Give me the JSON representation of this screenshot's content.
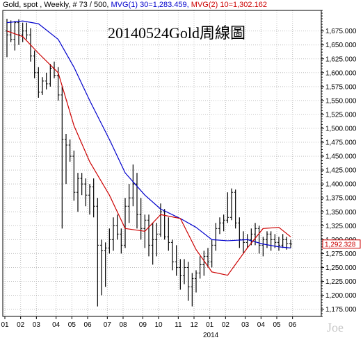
{
  "header": {
    "instrument": "Gold, spot , Weekly, # 73 / 500,",
    "mvg1": "MVG(1) 30=1,283.459,",
    "mvg2": "MVG(2) 10=1,302.162"
  },
  "colors": {
    "mvg1": "#0000cc",
    "mvg2": "#cc0000",
    "bars": "#000000",
    "grid": "#c0c0c0",
    "axis": "#000000"
  },
  "chart_data": {
    "type": "ohlc",
    "title": "20140524Gold周線圖",
    "watermark": "Joe",
    "year_label": "2014",
    "last_price_label": "1,292.328",
    "y_ticks": [
      "1,175.000",
      "1,200.000",
      "1,225.000",
      "1,250.000",
      "1,275.000",
      "1,300.000",
      "1,325.000",
      "1,350.000",
      "1,375.000",
      "1,400.000",
      "1,425.000",
      "1,450.000",
      "1,475.000",
      "1,500.000",
      "1,525.000",
      "1,550.000",
      "1,575.000",
      "1,600.000",
      "1,625.000",
      "1,650.000",
      "1,675.000"
    ],
    "y_tick_values": [
      1175,
      1200,
      1225,
      1250,
      1275,
      1300,
      1325,
      1350,
      1375,
      1400,
      1425,
      1450,
      1475,
      1500,
      1525,
      1550,
      1575,
      1600,
      1625,
      1650,
      1675
    ],
    "ylim": [
      1162,
      1712
    ],
    "x_tick_labels": [
      "01",
      "02",
      "03",
      "04",
      "05",
      "06",
      "07",
      "08",
      "09",
      "10",
      "11",
      "12",
      "01",
      "02",
      "03",
      "04",
      "05",
      "06"
    ],
    "x_tick_index": [
      0,
      4,
      8,
      13,
      17,
      21,
      26,
      30,
      35,
      39,
      44,
      48,
      52,
      56,
      61,
      65,
      69,
      73
    ],
    "n_bars": 73,
    "ohlc": [
      [
        1675,
        1697,
        1628,
        1668
      ],
      [
        1668,
        1694,
        1655,
        1660
      ],
      [
        1660,
        1693,
        1640,
        1690
      ],
      [
        1690,
        1696,
        1650,
        1668
      ],
      [
        1668,
        1690,
        1655,
        1675
      ],
      [
        1675,
        1690,
        1660,
        1668
      ],
      [
        1668,
        1680,
        1620,
        1630
      ],
      [
        1630,
        1640,
        1590,
        1600
      ],
      [
        1600,
        1610,
        1555,
        1565
      ],
      [
        1565,
        1592,
        1560,
        1585
      ],
      [
        1585,
        1600,
        1570,
        1580
      ],
      [
        1580,
        1616,
        1575,
        1608
      ],
      [
        1608,
        1620,
        1590,
        1595
      ],
      [
        1595,
        1610,
        1550,
        1560
      ],
      [
        1560,
        1575,
        1320,
        1480
      ],
      [
        1480,
        1490,
        1400,
        1470
      ],
      [
        1470,
        1480,
        1440,
        1450
      ],
      [
        1450,
        1460,
        1370,
        1385
      ],
      [
        1385,
        1420,
        1350,
        1410
      ],
      [
        1410,
        1420,
        1380,
        1400
      ],
      [
        1400,
        1410,
        1360,
        1380
      ],
      [
        1380,
        1400,
        1345,
        1395
      ],
      [
        1395,
        1410,
        1340,
        1360
      ],
      [
        1360,
        1375,
        1180,
        1290
      ],
      [
        1290,
        1300,
        1200,
        1280
      ],
      [
        1280,
        1295,
        1215,
        1285
      ],
      [
        1285,
        1320,
        1275,
        1300
      ],
      [
        1300,
        1340,
        1280,
        1325
      ],
      [
        1325,
        1345,
        1300,
        1310
      ],
      [
        1310,
        1320,
        1275,
        1290
      ],
      [
        1290,
        1375,
        1285,
        1360
      ],
      [
        1360,
        1400,
        1330,
        1375
      ],
      [
        1375,
        1435,
        1360,
        1400
      ],
      [
        1400,
        1420,
        1320,
        1345
      ],
      [
        1345,
        1375,
        1300,
        1320
      ],
      [
        1320,
        1345,
        1285,
        1335
      ],
      [
        1335,
        1345,
        1270,
        1290
      ],
      [
        1290,
        1330,
        1255,
        1300
      ],
      [
        1300,
        1330,
        1270,
        1310
      ],
      [
        1310,
        1365,
        1305,
        1350
      ],
      [
        1350,
        1355,
        1300,
        1305
      ],
      [
        1305,
        1340,
        1280,
        1295
      ],
      [
        1295,
        1300,
        1245,
        1260
      ],
      [
        1260,
        1290,
        1235,
        1250
      ],
      [
        1250,
        1265,
        1210,
        1235
      ],
      [
        1235,
        1265,
        1220,
        1250
      ],
      [
        1250,
        1260,
        1190,
        1215
      ],
      [
        1215,
        1240,
        1180,
        1230
      ],
      [
        1230,
        1245,
        1205,
        1240
      ],
      [
        1240,
        1270,
        1230,
        1255
      ],
      [
        1255,
        1280,
        1235,
        1270
      ],
      [
        1270,
        1285,
        1250,
        1260
      ],
      [
        1260,
        1300,
        1250,
        1290
      ],
      [
        1290,
        1330,
        1280,
        1320
      ],
      [
        1320,
        1340,
        1310,
        1330
      ],
      [
        1330,
        1345,
        1315,
        1335
      ],
      [
        1335,
        1385,
        1330,
        1340
      ],
      [
        1340,
        1392,
        1335,
        1385
      ],
      [
        1385,
        1390,
        1320,
        1330
      ],
      [
        1330,
        1340,
        1285,
        1300
      ],
      [
        1300,
        1315,
        1275,
        1295
      ],
      [
        1295,
        1310,
        1285,
        1300
      ],
      [
        1300,
        1320,
        1290,
        1310
      ],
      [
        1310,
        1330,
        1290,
        1320
      ],
      [
        1320,
        1325,
        1275,
        1290
      ],
      [
        1290,
        1305,
        1270,
        1300
      ],
      [
        1300,
        1315,
        1285,
        1310
      ],
      [
        1310,
        1315,
        1280,
        1300
      ],
      [
        1300,
        1310,
        1285,
        1295
      ],
      [
        1295,
        1305,
        1280,
        1290
      ],
      [
        1290,
        1310,
        1285,
        1300
      ],
      [
        1300,
        1305,
        1282,
        1293
      ],
      [
        1293,
        1300,
        1285,
        1292
      ]
    ],
    "series": [
      {
        "name": "MVG(1) 30",
        "x_index": [
          0,
          4,
          8,
          13,
          17,
          21,
          26,
          30,
          35,
          39,
          44,
          48,
          52,
          56,
          61,
          65,
          69,
          72
        ],
        "values": [
          1690,
          1693,
          1688,
          1660,
          1610,
          1550,
          1480,
          1420,
          1380,
          1355,
          1338,
          1322,
          1300,
          1298,
          1300,
          1292,
          1287,
          1285
        ]
      },
      {
        "name": "MVG(2) 10",
        "x_index": [
          0,
          4,
          8,
          13,
          17,
          21,
          26,
          30,
          35,
          39,
          44,
          48,
          52,
          56,
          61,
          65,
          69,
          72
        ],
        "values": [
          1675,
          1665,
          1635,
          1600,
          1505,
          1440,
          1380,
          1320,
          1315,
          1345,
          1338,
          1282,
          1242,
          1236,
          1285,
          1320,
          1322,
          1305
        ]
      }
    ]
  }
}
